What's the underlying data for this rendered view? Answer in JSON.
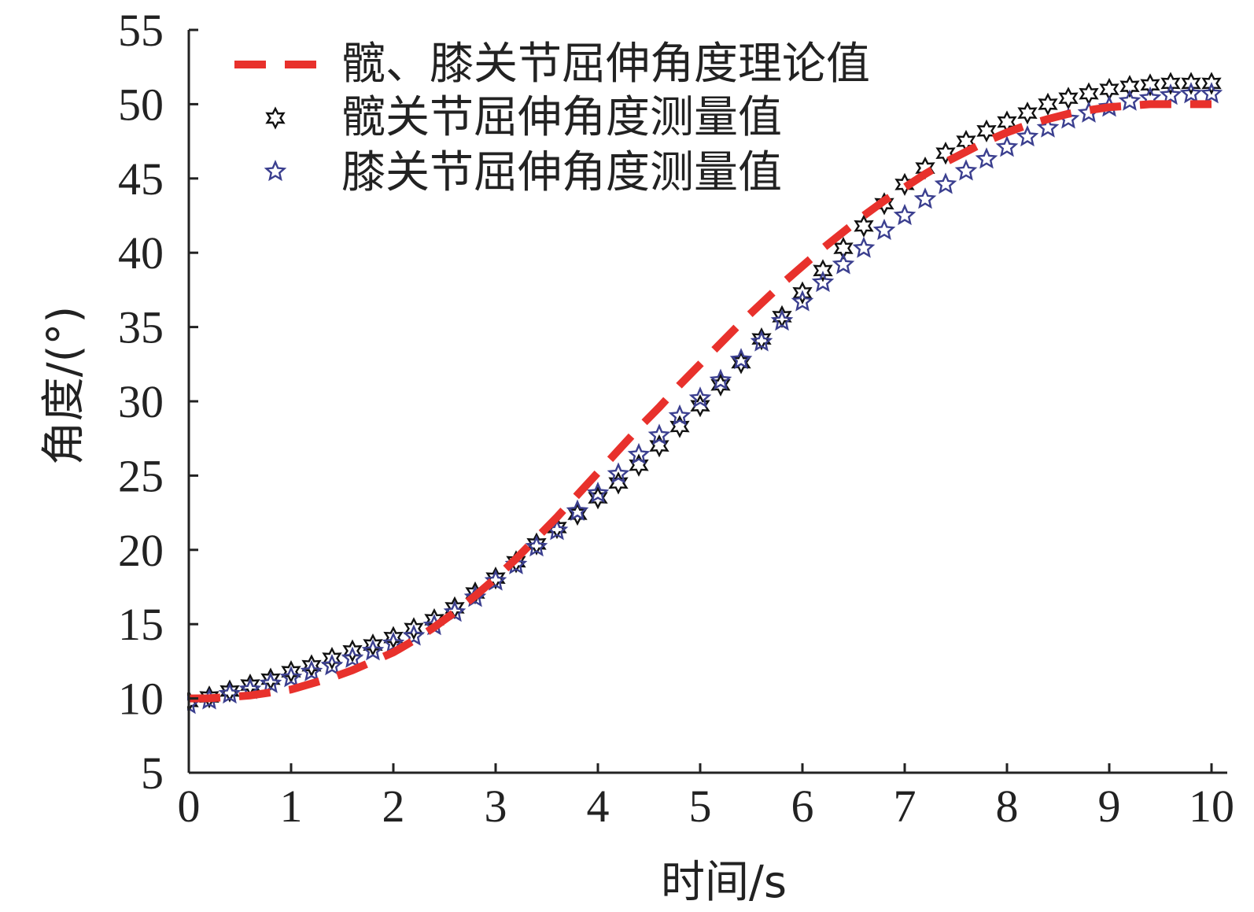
{
  "chart_data": {
    "type": "line",
    "xlabel": "时间/s",
    "ylabel": "角度/(°)",
    "xlim": [
      0,
      10
    ],
    "ylim": [
      5,
      55
    ],
    "xticks": [
      0,
      1,
      2,
      3,
      4,
      5,
      6,
      7,
      8,
      9,
      10
    ],
    "yticks": [
      5,
      10,
      15,
      20,
      25,
      30,
      35,
      40,
      45,
      50,
      55
    ],
    "grid": false,
    "legend_position": "top-left",
    "series": [
      {
        "name": "髋、膝关节屈伸角度理论值",
        "style": "dashed-line",
        "color": "#e8312c",
        "x": [
          0,
          0.2,
          0.4,
          0.6,
          0.8,
          1,
          1.2,
          1.4,
          1.6,
          1.8,
          2,
          2.2,
          2.4,
          2.6,
          2.8,
          3,
          3.2,
          3.4,
          3.6,
          3.8,
          4,
          4.2,
          4.4,
          4.6,
          4.8,
          5,
          5.2,
          5.4,
          5.6,
          5.8,
          6,
          6.2,
          6.4,
          6.6,
          6.8,
          7,
          7.2,
          7.4,
          7.6,
          7.8,
          8,
          8.2,
          8.4,
          8.6,
          8.8,
          9,
          9.2,
          9.4,
          9.6,
          9.8,
          10
        ],
        "y": [
          10,
          10.01,
          10.1,
          10.2,
          10.4,
          10.6,
          11,
          11.4,
          11.9,
          12.5,
          13.1,
          13.9,
          14.8,
          15.8,
          16.9,
          18.1,
          19.4,
          20.8,
          22.2,
          23.7,
          25.2,
          26.7,
          28.2,
          29.6,
          31.1,
          32.5,
          33.9,
          35.3,
          36.6,
          37.9,
          39.1,
          40.3,
          41.4,
          42.5,
          43.5,
          44.4,
          45.3,
          46.1,
          46.8,
          47.5,
          48.1,
          48.6,
          49,
          49.35,
          49.6,
          49.8,
          49.9,
          50,
          50,
          50,
          50
        ]
      },
      {
        "name": "髋关节屈伸角度测量值",
        "style": "star-marker",
        "color": "#111111",
        "x": [
          0,
          0.2,
          0.4,
          0.6,
          0.8,
          1,
          1.2,
          1.4,
          1.6,
          1.8,
          2,
          2.2,
          2.4,
          2.6,
          2.8,
          3,
          3.2,
          3.4,
          3.6,
          3.8,
          4,
          4.2,
          4.4,
          4.6,
          4.8,
          5,
          5.2,
          5.4,
          5.6,
          5.8,
          6,
          6.2,
          6.4,
          6.6,
          6.8,
          7,
          7.2,
          7.4,
          7.6,
          7.8,
          8,
          8.2,
          8.4,
          8.6,
          8.8,
          9,
          9.2,
          9.4,
          9.6,
          9.8,
          10
        ],
        "y": [
          9.8,
          10.1,
          10.5,
          10.9,
          11.3,
          11.8,
          12.2,
          12.7,
          13.2,
          13.6,
          14.1,
          14.7,
          15.3,
          16.1,
          17.1,
          18.1,
          19.2,
          20.4,
          21.5,
          22.4,
          23.5,
          24.5,
          25.7,
          27,
          28.3,
          29.7,
          31.1,
          32.6,
          34.2,
          35.7,
          37.3,
          38.8,
          40.3,
          41.8,
          43.3,
          44.6,
          45.7,
          46.7,
          47.5,
          48.2,
          48.8,
          49.4,
          50,
          50.4,
          50.7,
          51,
          51.2,
          51.3,
          51.4,
          51.4,
          51.4
        ]
      },
      {
        "name": "膝关节屈伸角度测量值",
        "style": "star-marker",
        "color": "#3b3f8f",
        "x": [
          0,
          0.2,
          0.4,
          0.6,
          0.8,
          1,
          1.2,
          1.4,
          1.6,
          1.8,
          2,
          2.2,
          2.4,
          2.6,
          2.8,
          3,
          3.2,
          3.4,
          3.6,
          3.8,
          4,
          4.2,
          4.4,
          4.6,
          4.8,
          5,
          5.2,
          5.4,
          5.6,
          5.8,
          6,
          6.2,
          6.4,
          6.6,
          6.8,
          7,
          7.2,
          7.4,
          7.6,
          7.8,
          8,
          8.2,
          8.4,
          8.6,
          8.8,
          9,
          9.2,
          9.4,
          9.6,
          9.8,
          10
        ],
        "y": [
          9.6,
          9.9,
          10.3,
          10.6,
          11,
          11.4,
          11.8,
          12.2,
          12.7,
          13.2,
          13.7,
          14.2,
          14.9,
          15.8,
          16.8,
          17.9,
          19,
          20.2,
          21.3,
          22.6,
          23.8,
          25.1,
          26.4,
          27.7,
          29,
          30.2,
          31.4,
          32.8,
          34,
          35.4,
          36.7,
          38,
          39.2,
          40.3,
          41.5,
          42.5,
          43.6,
          44.6,
          45.5,
          46.3,
          47.1,
          47.8,
          48.4,
          49,
          49.4,
          49.8,
          50.2,
          50.4,
          50.6,
          50.7,
          50.7
        ]
      }
    ]
  }
}
